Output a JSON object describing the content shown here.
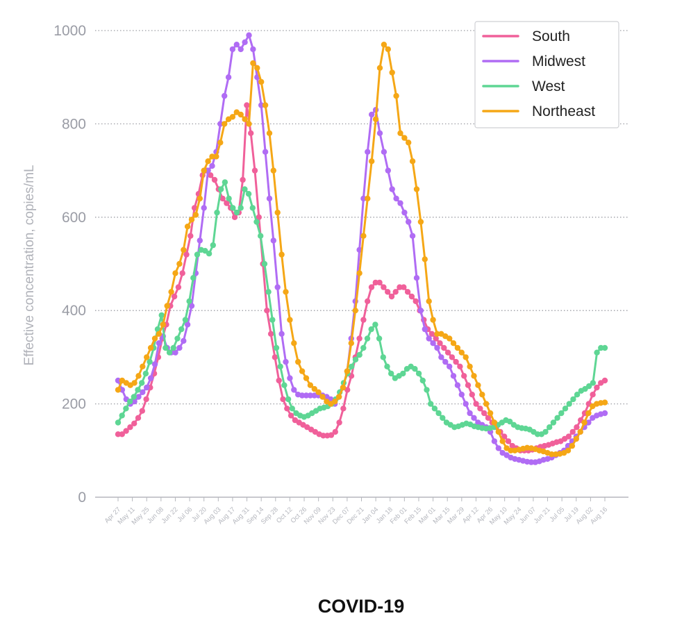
{
  "chart_data": {
    "type": "line",
    "title": "COVID-19",
    "xlabel": "",
    "ylabel": "Effective concentration, copies/mL",
    "ylim": [
      0,
      1000
    ],
    "yticks": [
      0,
      200,
      400,
      600,
      800,
      1000
    ],
    "grid": "horizontal-dotted",
    "legend": "top-right",
    "x_tick_labels": [
      "Apr 27",
      "May 11",
      "May 25",
      "Jun 08",
      "Jun 22",
      "Jul 06",
      "Jul 20",
      "Aug 03",
      "Aug 17",
      "Aug 31",
      "Sep 14",
      "Sep 28",
      "Oct 12",
      "Oct 26",
      "Nov 09",
      "Nov 23",
      "Dec 07",
      "Dec 21",
      "Jan 04",
      "Jan 18",
      "Feb 01",
      "Feb 15",
      "Mar 01",
      "Mar 15",
      "Mar 29",
      "Apr 12",
      "Apr 26",
      "May 10",
      "May 24",
      "Jun 07",
      "Jun 21",
      "Jul 05",
      "Jul 19",
      "Aug 02",
      "Aug 16"
    ],
    "series": [
      {
        "name": "South",
        "color": "#f0609a",
        "values": [
          135,
          135,
          142,
          150,
          158,
          170,
          185,
          210,
          235,
          265,
          300,
          340,
          370,
          410,
          430,
          450,
          480,
          520,
          560,
          620,
          650,
          690,
          700,
          690,
          680,
          660,
          640,
          630,
          620,
          600,
          610,
          680,
          840,
          780,
          700,
          600,
          500,
          400,
          350,
          300,
          250,
          210,
          190,
          175,
          165,
          160,
          155,
          150,
          145,
          140,
          135,
          132,
          132,
          133,
          140,
          160,
          190,
          230,
          260,
          300,
          340,
          380,
          420,
          450,
          460,
          460,
          450,
          440,
          430,
          440,
          450,
          450,
          440,
          430,
          420,
          400,
          380,
          360,
          350,
          340,
          330,
          320,
          310,
          300,
          290,
          280,
          260,
          240,
          220,
          200,
          190,
          180,
          170,
          160,
          150,
          140,
          130,
          120,
          110,
          105,
          100,
          100,
          100,
          102,
          105,
          108,
          110,
          112,
          115,
          118,
          120,
          125,
          130,
          140,
          150,
          165,
          180,
          200,
          220,
          235,
          245,
          250
        ]
      },
      {
        "name": "Midwest",
        "color": "#b06cf4",
        "values": [
          250,
          230,
          210,
          200,
          205,
          215,
          225,
          235,
          255,
          285,
          330,
          345,
          320,
          310,
          310,
          320,
          335,
          370,
          410,
          480,
          550,
          620,
          700,
          710,
          740,
          800,
          860,
          900,
          960,
          970,
          960,
          975,
          990,
          960,
          900,
          840,
          740,
          640,
          550,
          450,
          350,
          290,
          255,
          230,
          220,
          218,
          218,
          218,
          218,
          218,
          218,
          215,
          210,
          200,
          215,
          235,
          270,
          340,
          420,
          530,
          640,
          740,
          820,
          830,
          780,
          740,
          700,
          660,
          640,
          630,
          610,
          590,
          560,
          470,
          400,
          360,
          340,
          330,
          320,
          300,
          290,
          280,
          260,
          240,
          220,
          200,
          180,
          170,
          160,
          155,
          150,
          140,
          120,
          105,
          95,
          90,
          85,
          82,
          80,
          78,
          76,
          75,
          75,
          77,
          80,
          82,
          85,
          90,
          95,
          100,
          110,
          120,
          130,
          140,
          150,
          160,
          170,
          175,
          178,
          180
        ]
      },
      {
        "name": "West",
        "color": "#5ed694",
        "values": [
          160,
          175,
          190,
          205,
          215,
          230,
          245,
          265,
          290,
          320,
          360,
          390,
          320,
          310,
          320,
          340,
          360,
          380,
          420,
          470,
          520,
          530,
          528,
          522,
          540,
          610,
          660,
          675,
          640,
          620,
          610,
          620,
          660,
          650,
          620,
          590,
          560,
          500,
          440,
          380,
          320,
          280,
          240,
          210,
          190,
          180,
          175,
          172,
          175,
          180,
          185,
          190,
          192,
          195,
          200,
          210,
          225,
          245,
          265,
          280,
          295,
          305,
          320,
          340,
          360,
          370,
          340,
          300,
          280,
          265,
          255,
          260,
          265,
          275,
          280,
          275,
          265,
          250,
          230,
          200,
          190,
          180,
          170,
          160,
          155,
          150,
          152,
          155,
          158,
          156,
          152,
          150,
          148,
          147,
          148,
          150,
          155,
          160,
          165,
          162,
          155,
          150,
          148,
          147,
          145,
          140,
          135,
          135,
          140,
          150,
          160,
          170,
          180,
          190,
          200,
          210,
          220,
          228,
          232,
          238,
          245,
          310,
          320,
          320
        ]
      },
      {
        "name": "Northeast",
        "color": "#f5a716",
        "values": [
          230,
          250,
          245,
          240,
          245,
          260,
          280,
          300,
          320,
          340,
          350,
          370,
          410,
          440,
          480,
          500,
          530,
          580,
          595,
          605,
          640,
          700,
          720,
          730,
          730,
          760,
          800,
          810,
          815,
          825,
          820,
          810,
          800,
          930,
          920,
          890,
          840,
          780,
          700,
          610,
          520,
          440,
          380,
          330,
          290,
          270,
          255,
          240,
          232,
          225,
          215,
          205,
          200,
          205,
          215,
          235,
          270,
          330,
          400,
          480,
          560,
          640,
          720,
          810,
          920,
          970,
          960,
          910,
          860,
          780,
          770,
          760,
          720,
          660,
          590,
          510,
          420,
          380,
          350,
          350,
          345,
          340,
          330,
          320,
          310,
          300,
          280,
          260,
          240,
          220,
          200,
          180,
          160,
          140,
          120,
          105,
          100,
          100,
          102,
          104,
          106,
          105,
          103,
          100,
          98,
          95,
          92,
          92,
          93,
          95,
          100,
          110,
          125,
          140,
          160,
          180,
          195,
          200,
          202,
          203
        ]
      }
    ]
  }
}
